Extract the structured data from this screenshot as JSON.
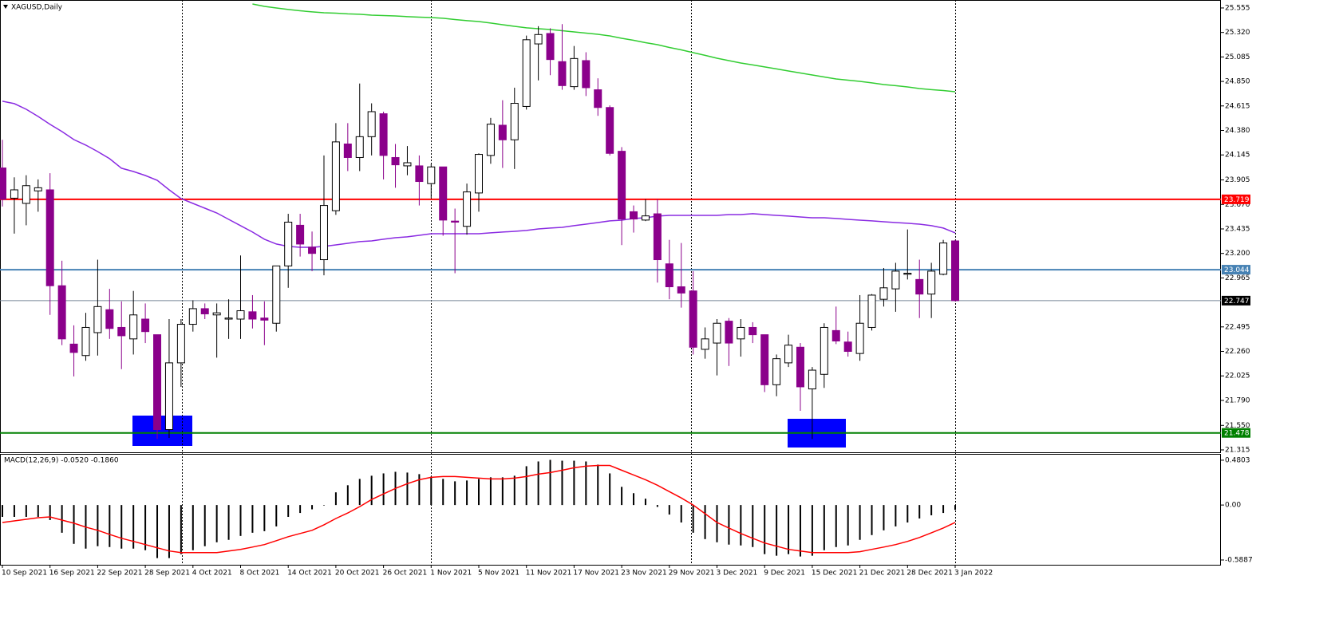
{
  "chart_data": [
    {
      "type": "candlestick",
      "title": "XAGUSD,Daily",
      "categories": [
        "10 Sep 2021",
        null,
        null,
        null,
        "16 Sep 2021",
        null,
        null,
        null,
        "22 Sep 2021",
        null,
        null,
        null,
        "28 Sep 2021",
        null,
        null,
        null,
        "4 Oct 2021",
        null,
        null,
        null,
        "8 Oct 2021",
        null,
        null,
        null,
        "14 Oct 2021",
        null,
        null,
        null,
        "20 Oct 2021",
        null,
        null,
        null,
        "26 Oct 2021",
        null,
        null,
        null,
        "1 Nov 2021",
        null,
        null,
        null,
        "5 Nov 2021",
        null,
        null,
        null,
        "11 Nov 2021",
        null,
        null,
        null,
        "17 Nov 2021",
        null,
        null,
        null,
        "23 Nov 2021",
        null,
        null,
        null,
        "29 Nov 2021",
        null,
        null,
        null,
        "3 Dec 2021",
        null,
        null,
        null,
        "9 Dec 2021",
        null,
        null,
        null,
        "15 Dec 2021",
        null,
        null,
        null,
        "21 Dec 2021",
        null,
        null,
        null,
        "28 Dec 2021",
        null,
        null,
        null,
        "3 Jan 2022"
      ],
      "open": [
        24.02,
        23.73,
        23.68,
        23.8,
        23.81,
        22.89,
        22.33,
        22.22,
        22.44,
        22.66,
        22.49,
        22.38,
        22.57,
        22.42,
        21.51,
        22.15,
        22.52,
        22.67,
        22.61,
        22.57,
        22.57,
        22.64,
        22.58,
        22.53,
        23.08,
        23.47,
        23.26,
        23.14,
        23.61,
        24.25,
        24.12,
        24.32,
        24.54,
        24.12,
        24.04,
        24.04,
        23.87,
        24.03,
        23.51,
        23.46,
        23.78,
        24.14,
        24.43,
        24.29,
        24.61,
        25.21,
        25.31,
        25.04,
        24.8,
        25.05,
        24.77,
        24.6,
        24.18,
        23.6,
        23.52,
        23.58,
        23.1,
        22.88,
        22.84,
        22.28,
        22.34,
        22.55,
        22.38,
        22.49,
        22.42,
        21.94,
        22.15,
        22.3,
        21.9,
        22.04,
        22.46,
        22.35,
        22.24,
        22.49,
        22.76,
        22.86,
        23.0,
        22.95,
        22.81,
        23.0,
        23.32
      ],
      "high": [
        24.29,
        23.93,
        23.95,
        23.91,
        23.97,
        23.13,
        22.51,
        22.63,
        23.14,
        22.86,
        22.74,
        22.84,
        22.72,
        22.42,
        22.57,
        22.57,
        22.75,
        22.72,
        22.72,
        22.76,
        23.18,
        22.8,
        22.74,
        23.08,
        23.58,
        23.58,
        23.41,
        24.14,
        24.45,
        24.45,
        24.83,
        24.64,
        24.56,
        24.25,
        24.23,
        24.14,
        24.06,
        24.03,
        23.63,
        23.87,
        24.16,
        24.5,
        24.67,
        24.79,
        25.29,
        25.38,
        25.36,
        25.4,
        25.19,
        25.13,
        24.88,
        24.62,
        24.22,
        23.66,
        23.72,
        23.72,
        23.33,
        23.3,
        23.03,
        22.49,
        22.57,
        22.58,
        22.57,
        22.54,
        22.42,
        22.23,
        22.42,
        22.34,
        22.11,
        22.53,
        22.69,
        22.45,
        22.8,
        22.81,
        23.06,
        23.11,
        23.43,
        23.14,
        23.11,
        23.33,
        23.33
      ],
      "low": [
        23.65,
        23.39,
        23.47,
        23.6,
        22.61,
        22.32,
        22.02,
        22.17,
        22.22,
        22.38,
        22.09,
        22.23,
        22.34,
        21.42,
        21.43,
        21.92,
        22.45,
        22.57,
        22.2,
        22.38,
        22.38,
        22.48,
        22.32,
        22.45,
        22.87,
        23.17,
        23.03,
        22.99,
        23.57,
        23.99,
        23.99,
        24.14,
        23.91,
        23.83,
        23.95,
        23.66,
        23.73,
        23.37,
        23.01,
        23.38,
        23.6,
        24.06,
        24.02,
        24.01,
        24.58,
        24.86,
        24.91,
        24.77,
        24.77,
        24.71,
        24.52,
        24.14,
        23.28,
        23.4,
        23.51,
        22.92,
        22.76,
        22.68,
        22.23,
        22.19,
        22.03,
        22.12,
        22.21,
        22.34,
        21.87,
        21.83,
        22.11,
        21.69,
        21.42,
        21.91,
        22.33,
        22.21,
        22.17,
        22.46,
        22.69,
        22.64,
        22.95,
        22.58,
        22.58,
        22.99,
        22.74
      ],
      "close": [
        23.72,
        23.81,
        23.85,
        23.83,
        22.89,
        22.38,
        22.25,
        22.49,
        22.69,
        22.48,
        22.41,
        22.61,
        22.45,
        21.51,
        22.15,
        22.52,
        22.67,
        22.62,
        22.63,
        22.58,
        22.65,
        22.57,
        22.56,
        23.08,
        23.5,
        23.29,
        23.2,
        23.66,
        24.27,
        24.12,
        24.32,
        24.56,
        24.14,
        24.05,
        24.07,
        23.89,
        24.03,
        23.52,
        23.5,
        23.79,
        24.15,
        24.44,
        24.29,
        24.64,
        25.25,
        25.3,
        25.06,
        24.81,
        25.07,
        24.79,
        24.6,
        24.16,
        23.53,
        23.53,
        23.56,
        23.14,
        22.88,
        22.82,
        22.3,
        22.38,
        22.53,
        22.34,
        22.49,
        22.42,
        21.94,
        22.19,
        22.32,
        21.92,
        22.08,
        22.49,
        22.36,
        22.26,
        22.53,
        22.8,
        22.87,
        23.03,
        23.01,
        22.81,
        23.03,
        23.3,
        22.747
      ],
      "up_color": "#ffffff",
      "down_color": "#8b008b",
      "wick_color": "#000000",
      "series": [
        {
          "color": "#32cd32",
          "values": [
            null,
            null,
            null,
            null,
            null,
            null,
            null,
            null,
            null,
            null,
            null,
            null,
            null,
            null,
            null,
            null,
            null,
            null,
            null,
            null,
            null,
            25.593,
            25.57,
            25.555,
            25.54,
            25.528,
            25.517,
            25.509,
            25.505,
            25.498,
            25.494,
            25.486,
            25.482,
            25.478,
            25.471,
            25.467,
            25.463,
            25.456,
            25.444,
            25.433,
            25.425,
            25.41,
            25.394,
            25.379,
            25.364,
            25.356,
            25.348,
            25.337,
            25.325,
            25.314,
            25.302,
            25.287,
            25.264,
            25.245,
            25.222,
            25.203,
            25.176,
            25.153,
            25.126,
            25.1,
            25.073,
            25.05,
            25.027,
            25.008,
            24.989,
            24.97,
            24.95,
            24.931,
            24.912,
            24.893,
            24.874,
            24.862,
            24.851,
            24.836,
            24.82,
            24.809,
            24.797,
            24.782,
            24.771,
            24.763,
            24.751
          ]
        },
        {
          "color": "#8a2be2",
          "values": [
            24.66,
            24.637,
            24.583,
            24.514,
            24.438,
            24.369,
            24.292,
            24.239,
            24.177,
            24.109,
            24.017,
            23.986,
            23.948,
            23.902,
            23.81,
            23.726,
            23.68,
            23.634,
            23.588,
            23.527,
            23.466,
            23.405,
            23.336,
            23.29,
            23.267,
            23.259,
            23.259,
            23.267,
            23.282,
            23.297,
            23.313,
            23.32,
            23.336,
            23.351,
            23.359,
            23.374,
            23.389,
            23.389,
            23.389,
            23.389,
            23.389,
            23.397,
            23.405,
            23.412,
            23.42,
            23.435,
            23.443,
            23.45,
            23.466,
            23.481,
            23.496,
            23.512,
            23.519,
            23.535,
            23.542,
            23.558,
            23.565,
            23.565,
            23.565,
            23.565,
            23.565,
            23.573,
            23.573,
            23.581,
            23.573,
            23.565,
            23.558,
            23.55,
            23.542,
            23.542,
            23.535,
            23.527,
            23.519,
            23.512,
            23.504,
            23.496,
            23.489,
            23.481,
            23.466,
            23.443,
            23.397
          ]
        }
      ],
      "hlines": [
        {
          "value": 23.719,
          "color": "#ff0000"
        },
        {
          "value": 23.044,
          "color": "#4682b4"
        },
        {
          "value": 21.478,
          "color": "#008000"
        },
        {
          "value": 22.747,
          "color": "#778899",
          "role": "bid"
        }
      ],
      "ylim": [
        21.292,
        25.616
      ],
      "yticks": [
        25.555,
        {
          "value": 25.32,
          "label": "25.320"
        },
        25.085,
        {
          "value": 24.85,
          "label": "24.850"
        },
        24.615,
        {
          "value": 24.38,
          "label": "24.380"
        },
        24.145,
        23.905,
        {
          "value": 23.67,
          "label": "23.670"
        },
        23.435,
        {
          "value": 23.2,
          "label": "23.200"
        },
        22.965,
        22.495,
        {
          "value": 22.26,
          "label": "22.260"
        },
        22.025,
        {
          "value": 21.79,
          "label": "21.790"
        },
        {
          "value": 21.55,
          "label": "21.550"
        },
        21.315
      ]
    },
    {
      "type": "macd",
      "title": "MACD(12,26,9) -0.0520 -0.1860",
      "series": [
        {
          "kind": "histogram",
          "color": "#000000",
          "values": [
            -0.127,
            -0.127,
            -0.127,
            -0.127,
            -0.161,
            -0.297,
            -0.416,
            -0.467,
            -0.441,
            -0.45,
            -0.467,
            -0.467,
            -0.484,
            -0.568,
            -0.568,
            -0.526,
            -0.484,
            -0.441,
            -0.399,
            -0.373,
            -0.331,
            -0.297,
            -0.28,
            -0.229,
            -0.127,
            -0.085,
            -0.046,
            -0.005,
            0.136,
            0.212,
            0.28,
            0.314,
            0.339,
            0.356,
            0.348,
            0.331,
            0.305,
            0.28,
            0.254,
            0.263,
            0.28,
            0.297,
            0.297,
            0.314,
            0.416,
            0.467,
            0.484,
            0.475,
            0.475,
            0.467,
            0.433,
            0.339,
            0.195,
            0.127,
            0.068,
            -0.02,
            -0.102,
            -0.187,
            -0.297,
            -0.365,
            -0.399,
            -0.424,
            -0.433,
            -0.45,
            -0.526,
            -0.543,
            -0.526,
            -0.551,
            -0.543,
            -0.484,
            -0.45,
            -0.433,
            -0.373,
            -0.322,
            -0.271,
            -0.229,
            -0.187,
            -0.144,
            -0.11,
            -0.085,
            -0.052
          ]
        },
        {
          "kind": "line",
          "color": "#ff0000",
          "values": [
            -0.187,
            -0.17,
            -0.153,
            -0.136,
            -0.127,
            -0.161,
            -0.195,
            -0.237,
            -0.271,
            -0.314,
            -0.356,
            -0.39,
            -0.424,
            -0.458,
            -0.492,
            -0.509,
            -0.509,
            -0.509,
            -0.509,
            -0.492,
            -0.475,
            -0.45,
            -0.424,
            -0.382,
            -0.339,
            -0.305,
            -0.271,
            -0.212,
            -0.144,
            -0.085,
            -0.017,
            0.059,
            0.119,
            0.178,
            0.229,
            0.271,
            0.297,
            0.305,
            0.305,
            0.297,
            0.288,
            0.28,
            0.28,
            0.288,
            0.305,
            0.331,
            0.348,
            0.373,
            0.399,
            0.416,
            0.424,
            0.424,
            0.373,
            0.322,
            0.271,
            0.212,
            0.144,
            0.076,
            0,
            -0.093,
            -0.187,
            -0.246,
            -0.305,
            -0.356,
            -0.407,
            -0.441,
            -0.475,
            -0.492,
            -0.509,
            -0.509,
            -0.509,
            -0.509,
            -0.5,
            -0.475,
            -0.45,
            -0.424,
            -0.39,
            -0.348,
            -0.297,
            -0.246,
            -0.186
          ]
        }
      ],
      "ylim": [
        -0.64,
        0.548
      ],
      "yticks": [
        0.4803,
        {
          "value": 0,
          "label": "0.00"
        },
        -0.5887
      ]
    }
  ]
}
